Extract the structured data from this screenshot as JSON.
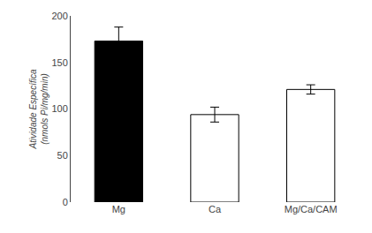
{
  "chart_data": {
    "type": "bar",
    "categories": [
      "Mg",
      "Ca",
      "Mg/Ca/CAM"
    ],
    "values": [
      173,
      94,
      121
    ],
    "errors": [
      15,
      8,
      5
    ],
    "colors": [
      "black",
      "white",
      "white"
    ],
    "ylabel": "Atividade Específica\n(nmols Pi/mg/min)",
    "ylim": [
      0,
      200
    ],
    "yticks": [
      0,
      50,
      100,
      150,
      200
    ],
    "grid": false
  }
}
